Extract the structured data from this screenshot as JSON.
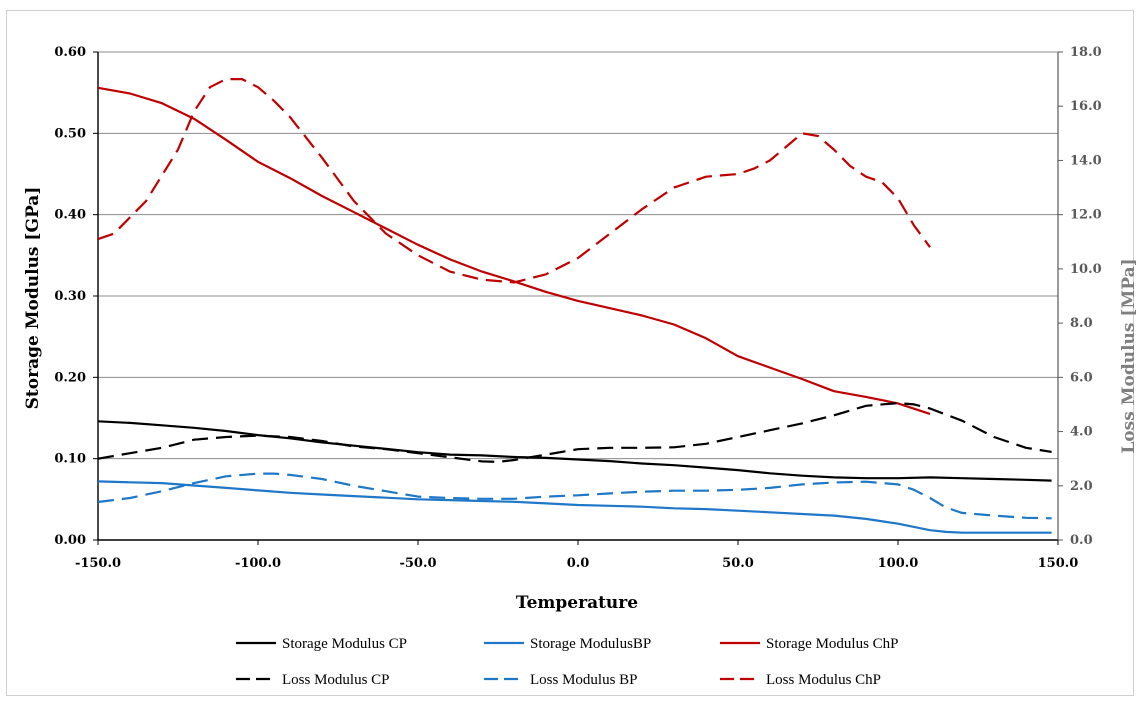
{
  "chart_data": {
    "type": "line",
    "xlabel": "Temperature",
    "ylabel": "Storage Modulus [GPa]",
    "y2label": "Loss Modulus [MPa]",
    "xlim": [
      -150,
      150
    ],
    "ylim": [
      0,
      0.6
    ],
    "y2lim": [
      0,
      18
    ],
    "x_ticks": [
      "-150.0",
      "-100.0",
      "-50.0",
      "0.0",
      "50.0",
      "100.0",
      "150.0"
    ],
    "y_ticks": [
      "0.00",
      "0.10",
      "0.20",
      "0.30",
      "0.40",
      "0.50",
      "0.60"
    ],
    "y2_ticks": [
      "0.0",
      "2.0",
      "4.0",
      "6.0",
      "8.0",
      "10.0",
      "12.0",
      "14.0",
      "16.0",
      "18.0"
    ],
    "grid": true,
    "legend_position": "bottom",
    "series": [
      {
        "name": "Storage Modulus CP",
        "axis": "left",
        "style": "solid",
        "color": "#000000",
        "x": [
          -150,
          -140,
          -130,
          -120,
          -110,
          -100,
          -90,
          -80,
          -70,
          -60,
          -50,
          -40,
          -30,
          -20,
          -10,
          0,
          10,
          20,
          30,
          40,
          50,
          60,
          70,
          80,
          90,
          100,
          110,
          120,
          130,
          140,
          148
        ],
        "y": [
          0.146,
          0.144,
          0.141,
          0.138,
          0.134,
          0.129,
          0.125,
          0.12,
          0.116,
          0.112,
          0.108,
          0.105,
          0.104,
          0.102,
          0.101,
          0.099,
          0.097,
          0.094,
          0.092,
          0.089,
          0.086,
          0.082,
          0.079,
          0.077,
          0.076,
          0.076,
          0.077,
          0.076,
          0.075,
          0.074,
          0.073
        ]
      },
      {
        "name": "Storage ModulusBP",
        "axis": "left",
        "style": "solid",
        "color": "#1f77c8",
        "x": [
          -150,
          -140,
          -130,
          -120,
          -110,
          -100,
          -90,
          -80,
          -70,
          -60,
          -50,
          -40,
          -30,
          -20,
          -10,
          0,
          10,
          20,
          30,
          40,
          50,
          60,
          70,
          80,
          90,
          100,
          110,
          115,
          120,
          130,
          140,
          148
        ],
        "y": [
          0.072,
          0.071,
          0.07,
          0.067,
          0.064,
          0.061,
          0.058,
          0.056,
          0.054,
          0.052,
          0.05,
          0.049,
          0.048,
          0.047,
          0.045,
          0.043,
          0.042,
          0.041,
          0.039,
          0.038,
          0.036,
          0.034,
          0.032,
          0.03,
          0.026,
          0.02,
          0.012,
          0.01,
          0.009,
          0.009,
          0.009,
          0.009
        ]
      },
      {
        "name": "Storage Modulus ChP",
        "axis": "left",
        "style": "solid",
        "color": "#c00000",
        "x": [
          -150,
          -140,
          -130,
          -120,
          -110,
          -100,
          -90,
          -80,
          -70,
          -60,
          -50,
          -40,
          -30,
          -20,
          -10,
          0,
          10,
          20,
          30,
          40,
          50,
          60,
          70,
          80,
          90,
          100,
          110
        ],
        "y": [
          0.556,
          0.549,
          0.537,
          0.518,
          0.492,
          0.465,
          0.445,
          0.423,
          0.403,
          0.383,
          0.363,
          0.345,
          0.33,
          0.318,
          0.305,
          0.294,
          0.285,
          0.276,
          0.265,
          0.248,
          0.226,
          0.212,
          0.198,
          0.183,
          0.176,
          0.168,
          0.155
        ]
      },
      {
        "name": "Loss Modulus CP",
        "axis": "right",
        "style": "dashed",
        "color": "#000000",
        "x": [
          -150,
          -140,
          -130,
          -120,
          -110,
          -100,
          -90,
          -80,
          -70,
          -60,
          -50,
          -40,
          -30,
          -25,
          -20,
          -10,
          0,
          10,
          20,
          30,
          40,
          50,
          60,
          70,
          80,
          90,
          100,
          105,
          110,
          120,
          130,
          140,
          148
        ],
        "y": [
          3.0,
          3.2,
          3.4,
          3.7,
          3.8,
          3.85,
          3.8,
          3.65,
          3.45,
          3.35,
          3.2,
          3.05,
          2.9,
          2.88,
          2.95,
          3.15,
          3.35,
          3.4,
          3.4,
          3.42,
          3.55,
          3.8,
          4.05,
          4.3,
          4.6,
          4.95,
          5.05,
          5.0,
          4.85,
          4.4,
          3.8,
          3.4,
          3.25
        ]
      },
      {
        "name": "Loss Modulus BP",
        "axis": "right",
        "style": "dashed",
        "color": "#1f77c8",
        "x": [
          -150,
          -140,
          -130,
          -120,
          -110,
          -100,
          -95,
          -90,
          -80,
          -70,
          -60,
          -50,
          -40,
          -30,
          -20,
          -10,
          0,
          10,
          20,
          30,
          40,
          50,
          60,
          70,
          80,
          90,
          100,
          105,
          110,
          115,
          120,
          130,
          140,
          148
        ],
        "y": [
          1.4,
          1.55,
          1.8,
          2.1,
          2.35,
          2.45,
          2.45,
          2.4,
          2.25,
          2.0,
          1.8,
          1.6,
          1.55,
          1.52,
          1.52,
          1.6,
          1.65,
          1.72,
          1.78,
          1.82,
          1.82,
          1.85,
          1.92,
          2.05,
          2.12,
          2.15,
          2.05,
          1.85,
          1.55,
          1.2,
          1.0,
          0.9,
          0.82,
          0.8
        ]
      },
      {
        "name": "Loss Modulus ChP",
        "axis": "right",
        "style": "dashed",
        "color": "#c00000",
        "x": [
          -150,
          -145,
          -135,
          -125,
          -120,
          -115,
          -110,
          -105,
          -100,
          -95,
          -90,
          -80,
          -70,
          -60,
          -50,
          -40,
          -30,
          -20,
          -10,
          0,
          10,
          20,
          30,
          40,
          50,
          55,
          60,
          65,
          70,
          75,
          80,
          85,
          90,
          95,
          100,
          105,
          110
        ],
        "y": [
          11.1,
          11.3,
          12.5,
          14.4,
          15.8,
          16.7,
          17.0,
          17.0,
          16.7,
          16.2,
          15.6,
          14.1,
          12.5,
          11.3,
          10.5,
          9.9,
          9.6,
          9.5,
          9.8,
          10.4,
          11.3,
          12.2,
          13.0,
          13.4,
          13.5,
          13.7,
          14.0,
          14.5,
          15.0,
          14.9,
          14.4,
          13.8,
          13.4,
          13.2,
          12.6,
          11.6,
          10.8
        ]
      }
    ]
  }
}
